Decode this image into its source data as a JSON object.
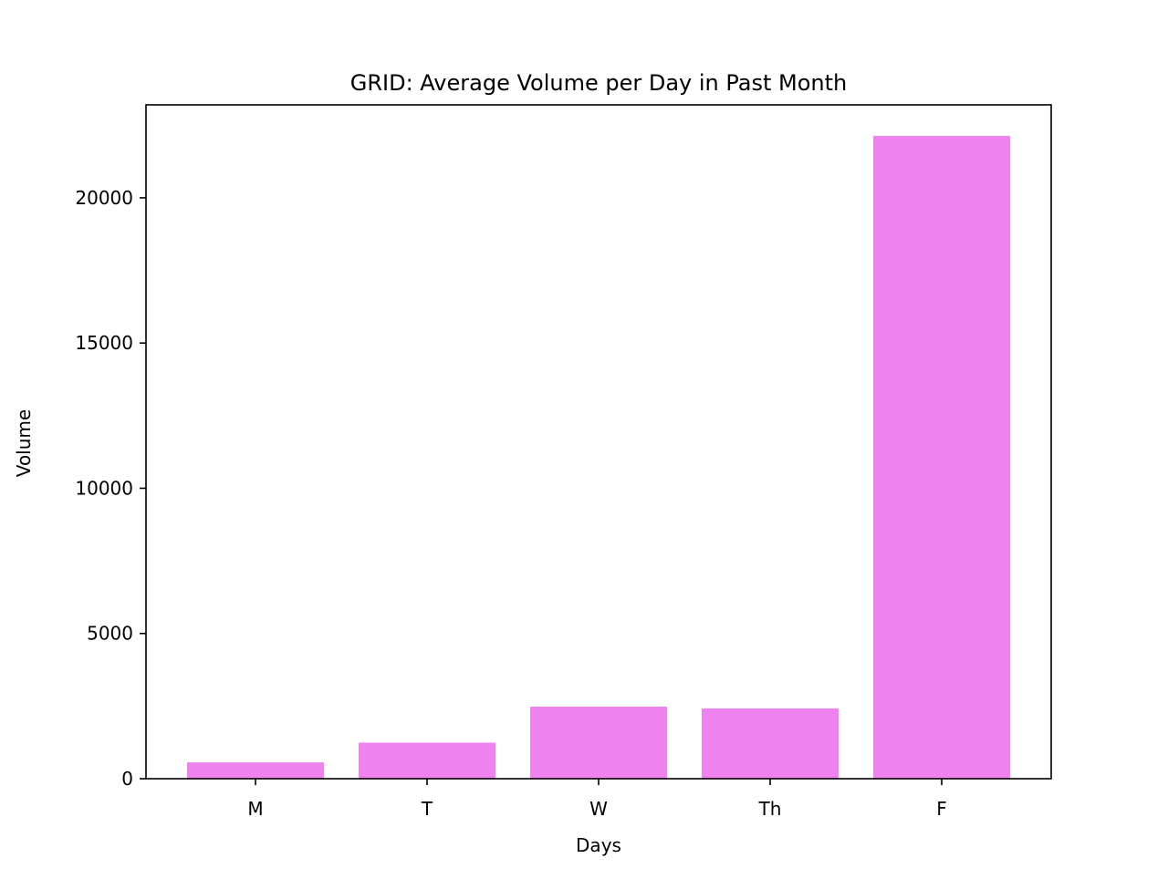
{
  "chart_data": {
    "type": "bar",
    "title": "GRID: Average Volume per Day in Past Month",
    "xlabel": "Days",
    "ylabel": "Volume",
    "categories": [
      "M",
      "T",
      "W",
      "Th",
      "F"
    ],
    "values": [
      560,
      1240,
      2480,
      2420,
      22130
    ],
    "ylim": [
      0,
      23200
    ],
    "yticks": [
      0,
      5000,
      10000,
      15000,
      20000
    ],
    "ytick_labels": [
      "0",
      "5000",
      "10000",
      "15000",
      "20000"
    ],
    "bar_color": "#ee82ee",
    "grid": false,
    "legend": "none"
  }
}
